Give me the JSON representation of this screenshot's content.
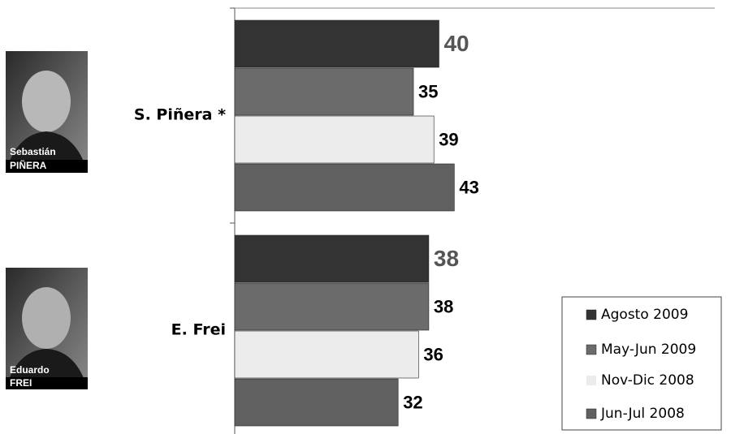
{
  "chart_data": {
    "type": "bar",
    "orientation": "horizontal",
    "categories": [
      "S. Piñera *",
      "E. Frei"
    ],
    "series": [
      {
        "name": "Agosto 2009",
        "color": "#333333",
        "values": [
          40,
          38
        ]
      },
      {
        "name": "May-Jun 2009",
        "color": "#6b6b6b",
        "values": [
          35,
          38
        ]
      },
      {
        "name": "Nov-Dic 2008",
        "color": "#ececec",
        "values": [
          39,
          36
        ]
      },
      {
        "name": "Jun-Jul 2008",
        "color": "#606060",
        "values": [
          43,
          32
        ]
      }
    ],
    "xlim": [
      0,
      94
    ],
    "legend": "lower right",
    "photo_labels": [
      [
        "Sebastián",
        "PIÑERA"
      ],
      [
        "Eduardo",
        "FREI"
      ]
    ]
  }
}
